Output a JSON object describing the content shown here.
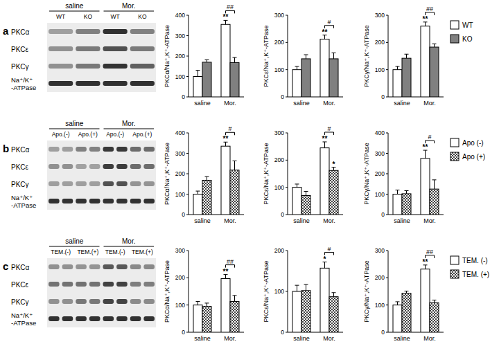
{
  "blots": [
    {
      "label": "a",
      "groups": [
        "saline",
        "Mor."
      ],
      "lanes": [
        "WT",
        "KO",
        "WT",
        "KO"
      ],
      "rows": [
        "PKCα",
        "PKCε",
        "PKCγ",
        [
          "Na⁺/K⁺",
          "-ATPase"
        ]
      ]
    },
    {
      "label": "b",
      "groups": [
        "saline",
        "Mor."
      ],
      "lanes": [
        "Apo.(-)",
        "Apo.(+)",
        "Apo.(-)",
        "Apo.(+)"
      ],
      "rows": [
        "PKCα",
        "PKCε",
        "PKCγ",
        [
          "Na⁺/K⁺",
          "-ATPase"
        ]
      ]
    },
    {
      "label": "c",
      "groups": [
        "saline",
        "Mor."
      ],
      "lanes": [
        "TEM.(-)",
        "TEM.(+)",
        "TEM.(-)",
        "TEM.(+)"
      ],
      "rows": [
        "PKCα",
        "PKCε",
        "PKCγ",
        [
          "Na⁺/K⁺",
          "-ATPase"
        ]
      ]
    }
  ],
  "chart_data": [
    {
      "type": "bar",
      "ylabel": "PKCα/Na⁺,K⁺-ATPase",
      "categories": [
        "saline",
        "Mor."
      ],
      "series": [
        {
          "name": "WT",
          "color": "#ffffff",
          "values": [
            100,
            355
          ],
          "errors": [
            30,
            20
          ]
        },
        {
          "name": "KO",
          "color": "#808080",
          "values": [
            170,
            168
          ],
          "errors": [
            12,
            25
          ]
        }
      ],
      "ylim": [
        0,
        400
      ],
      "yticks": [
        0,
        100,
        200,
        300,
        400
      ],
      "annotations": [
        {
          "text": "**",
          "series": 0,
          "category": 1
        }
      ],
      "comparisons": [
        {
          "text": "##",
          "category": 1
        }
      ]
    },
    {
      "type": "bar",
      "ylabel": "PKCε/Na⁺,K⁺-ATPase",
      "categories": [
        "saline",
        "Mor."
      ],
      "series": [
        {
          "name": "WT",
          "color": "#ffffff",
          "values": [
            100,
            212
          ],
          "errors": [
            12,
            15
          ]
        },
        {
          "name": "KO",
          "color": "#808080",
          "values": [
            140,
            140
          ],
          "errors": [
            15,
            22
          ]
        }
      ],
      "ylim": [
        0,
        300
      ],
      "yticks": [
        0,
        100,
        200,
        300
      ],
      "annotations": [
        {
          "text": "**",
          "series": 0,
          "category": 1
        }
      ],
      "comparisons": [
        {
          "text": "#",
          "category": 1
        }
      ]
    },
    {
      "type": "bar",
      "ylabel": "PKCγ/Na⁺,K⁺-ATPase",
      "categories": [
        "saline",
        "Mor."
      ],
      "series": [
        {
          "name": "WT",
          "color": "#ffffff",
          "values": [
            100,
            260
          ],
          "errors": [
            12,
            15
          ]
        },
        {
          "name": "KO",
          "color": "#808080",
          "values": [
            142,
            183
          ],
          "errors": [
            15,
            12
          ]
        }
      ],
      "ylim": [
        0,
        300
      ],
      "yticks": [
        0,
        100,
        200,
        300
      ],
      "annotations": [
        {
          "text": "**",
          "series": 0,
          "category": 1
        }
      ],
      "comparisons": [
        {
          "text": "##",
          "category": 1
        }
      ]
    },
    {
      "type": "bar",
      "ylabel": "PKCα/Na⁺,K⁺-ATPase",
      "categories": [
        "saline",
        "Mor."
      ],
      "series": [
        {
          "name": "Apo (-)",
          "color": "#ffffff",
          "values": [
            100,
            335
          ],
          "errors": [
            15,
            20
          ]
        },
        {
          "name": "Apo (+)",
          "color": "#444444",
          "values": [
            168,
            218
          ],
          "errors": [
            18,
            45
          ]
        }
      ],
      "ylim": [
        0,
        400
      ],
      "yticks": [
        0,
        100,
        200,
        300,
        400
      ],
      "annotations": [
        {
          "text": "**",
          "series": 0,
          "category": 1
        }
      ],
      "comparisons": [
        {
          "text": "#",
          "category": 1
        }
      ]
    },
    {
      "type": "bar",
      "ylabel": "PKCε/Na⁺,K⁺-ATPase",
      "categories": [
        "saline",
        "Mor."
      ],
      "series": [
        {
          "name": "Apo (-)",
          "color": "#ffffff",
          "values": [
            100,
            245
          ],
          "errors": [
            12,
            22
          ]
        },
        {
          "name": "Apo (+)",
          "color": "#444444",
          "values": [
            70,
            162
          ],
          "errors": [
            15,
            12
          ]
        }
      ],
      "ylim": [
        0,
        300
      ],
      "yticks": [
        0,
        100,
        200,
        300
      ],
      "annotations": [
        {
          "text": "**",
          "series": 0,
          "category": 1
        },
        {
          "text": "*",
          "series": 1,
          "category": 1
        }
      ],
      "comparisons": [
        {
          "text": "#",
          "category": 1
        }
      ]
    },
    {
      "type": "bar",
      "ylabel": "PKCγ/Na⁺,K⁺-ATPase",
      "categories": [
        "saline",
        "Mor."
      ],
      "series": [
        {
          "name": "Apo (-)",
          "color": "#ffffff",
          "values": [
            100,
            275
          ],
          "errors": [
            20,
            40
          ]
        },
        {
          "name": "Apo (+)",
          "color": "#444444",
          "values": [
            102,
            125
          ],
          "errors": [
            15,
            45
          ]
        }
      ],
      "ylim": [
        0,
        400
      ],
      "yticks": [
        0,
        100,
        200,
        300,
        400
      ],
      "annotations": [
        {
          "text": "**",
          "series": 0,
          "category": 1
        }
      ],
      "comparisons": [
        {
          "text": "#",
          "category": 1
        }
      ]
    },
    {
      "type": "bar",
      "ylabel": "PKCα/Na⁺,K⁺-ATPase",
      "categories": [
        "saline",
        "Mor."
      ],
      "series": [
        {
          "name": "TEM. (-)",
          "color": "#ffffff",
          "values": [
            100,
            197
          ],
          "errors": [
            13,
            15
          ]
        },
        {
          "name": "TEM. (+)",
          "color": "#444444",
          "values": [
            95,
            113
          ],
          "errors": [
            12,
            22
          ]
        }
      ],
      "ylim": [
        0,
        300
      ],
      "yticks": [
        0,
        100,
        200,
        300
      ],
      "annotations": [
        {
          "text": "**",
          "series": 0,
          "category": 1
        }
      ],
      "comparisons": [
        {
          "text": "##",
          "category": 1
        }
      ]
    },
    {
      "type": "bar",
      "ylabel": "PKCε/Na⁺,K⁺-ATPase",
      "categories": [
        "saline",
        "Mor."
      ],
      "series": [
        {
          "name": "TEM. (-)",
          "color": "#ffffff",
          "values": [
            100,
            157
          ],
          "errors": [
            15,
            15
          ]
        },
        {
          "name": "TEM. (+)",
          "color": "#444444",
          "values": [
            102,
            87
          ],
          "errors": [
            15,
            10
          ]
        }
      ],
      "ylim": [
        0,
        200
      ],
      "yticks": [
        0,
        100,
        200
      ],
      "annotations": [
        {
          "text": "*",
          "series": 0,
          "category": 1
        }
      ],
      "comparisons": [
        {
          "text": "#",
          "category": 1
        }
      ]
    },
    {
      "type": "bar",
      "ylabel": "PKCγ/Na⁺,K⁺-ATPase",
      "categories": [
        "saline",
        "Mor."
      ],
      "series": [
        {
          "name": "TEM. (-)",
          "color": "#ffffff",
          "values": [
            100,
            232
          ],
          "errors": [
            12,
            15
          ]
        },
        {
          "name": "TEM. (+)",
          "color": "#444444",
          "values": [
            143,
            108
          ],
          "errors": [
            8,
            10
          ]
        }
      ],
      "ylim": [
        0,
        300
      ],
      "yticks": [
        0,
        100,
        200,
        300
      ],
      "annotations": [
        {
          "text": "**",
          "series": 0,
          "category": 1
        }
      ],
      "comparisons": [
        {
          "text": "##",
          "category": 1
        }
      ]
    }
  ]
}
